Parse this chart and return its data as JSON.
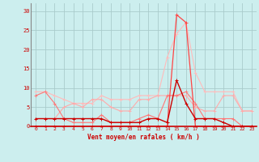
{
  "x": [
    0,
    1,
    2,
    3,
    4,
    5,
    6,
    7,
    8,
    9,
    10,
    11,
    12,
    13,
    14,
    15,
    16,
    17,
    18,
    19,
    20,
    21,
    22,
    23
  ],
  "line_lightest": [
    9,
    9,
    8,
    7,
    6,
    6,
    6,
    8,
    7,
    7,
    7,
    8,
    8,
    8,
    18,
    24,
    27,
    14,
    9,
    9,
    9,
    9,
    4,
    4
  ],
  "line_light": [
    2,
    2,
    2,
    5,
    6,
    5,
    7,
    7,
    5,
    4,
    4,
    7,
    7,
    8,
    8,
    8,
    8,
    5,
    4,
    4,
    8,
    8,
    4,
    4
  ],
  "line_medium": [
    8,
    9,
    6,
    2,
    1,
    1,
    1,
    3,
    1,
    1,
    1,
    2,
    3,
    2,
    8,
    8,
    9,
    6,
    2,
    2,
    2,
    2,
    0,
    0
  ],
  "line_peak": [
    0,
    0,
    0,
    0,
    0,
    0,
    0,
    0,
    0,
    0,
    0,
    0,
    0,
    0,
    0,
    29,
    27,
    0,
    0,
    0,
    0,
    0,
    0,
    0
  ],
  "line_dark": [
    2,
    2,
    2,
    2,
    2,
    2,
    2,
    2,
    1,
    1,
    1,
    1,
    2,
    2,
    1,
    12,
    6,
    2,
    2,
    2,
    1,
    0,
    0,
    0
  ],
  "color_lightest": "#ffbbbb",
  "color_light": "#ffaaaa",
  "color_medium": "#ff7777",
  "color_peak": "#ff4444",
  "color_dark": "#cc0000",
  "bg_color": "#cceeee",
  "grid_color": "#aacccc",
  "axis_label_color": "#cc0000",
  "xlabel": "Vent moyen/en rafales ( km/h )",
  "ylim": [
    0,
    32
  ],
  "xlim": [
    -0.5,
    23.5
  ],
  "yticks": [
    0,
    5,
    10,
    15,
    20,
    25,
    30
  ],
  "xticks": [
    0,
    1,
    2,
    3,
    4,
    5,
    6,
    7,
    8,
    9,
    10,
    11,
    12,
    13,
    14,
    15,
    16,
    17,
    18,
    19,
    20,
    21,
    22,
    23
  ]
}
